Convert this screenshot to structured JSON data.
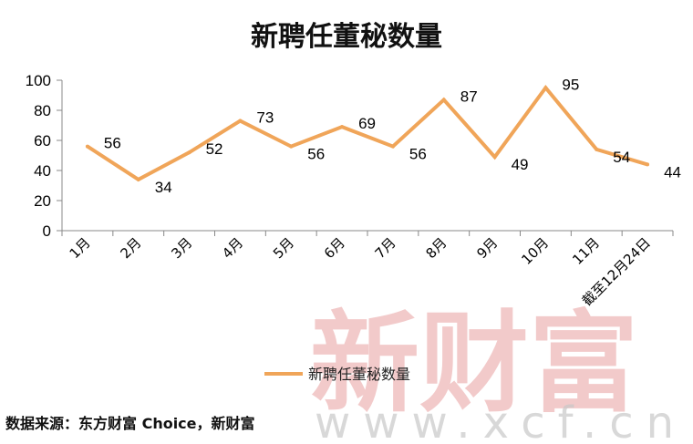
{
  "chart_data": {
    "type": "line",
    "title": "新聘任董秘数量",
    "categories": [
      "1月",
      "2月",
      "3月",
      "4月",
      "5月",
      "6月",
      "7月",
      "8月",
      "9月",
      "10月",
      "11月",
      "截至12月24日"
    ],
    "series": [
      {
        "name": "新聘任董秘数量",
        "values": [
          56,
          34,
          52,
          73,
          56,
          69,
          56,
          87,
          49,
          95,
          54,
          44
        ]
      }
    ],
    "y_ticks": [
      "0",
      "20",
      "40",
      "60",
      "80",
      "100"
    ],
    "ylim": [
      0,
      100
    ],
    "grid": false,
    "legend": "bottom",
    "data_labels": [
      "56",
      "34",
      "52",
      "73",
      "56",
      "69",
      "56",
      "87",
      "49",
      "95",
      "54",
      "44"
    ]
  },
  "colors": {
    "line": "#F0A559",
    "axis": "#888888",
    "watermark": "#E8A0A0"
  },
  "source": "数据来源：东方财富 Choice，新财富",
  "watermark": {
    "brand": "新财富",
    "url": "www.xcf.cn"
  }
}
